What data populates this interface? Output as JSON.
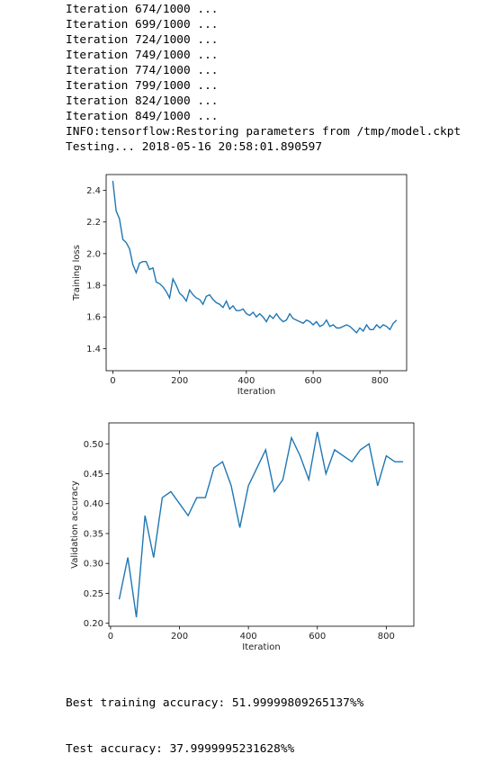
{
  "log_lines": [
    "Iteration 674/1000 ...",
    "Iteration 699/1000 ...",
    "Iteration 724/1000 ...",
    "Iteration 749/1000 ...",
    "Iteration 774/1000 ...",
    "Iteration 799/1000 ...",
    "Iteration 824/1000 ...",
    "Iteration 849/1000 ...",
    "INFO:tensorflow:Restoring parameters from /tmp/model.ckpt",
    "Testing... 2018-05-16 20:58:01.890597"
  ],
  "summary_lines": [
    "Best training accuracy: 51.99999809265137%%",
    "Test accuracy: 37.9999995231628%%"
  ],
  "colors": {
    "series": "#1f77b4",
    "axis": "#000000"
  },
  "chart_data": [
    {
      "type": "line",
      "xlabel": "Iteration",
      "ylabel": "Training loss",
      "xlim": [
        -20,
        880
      ],
      "ylim": [
        1.26,
        2.5
      ],
      "xticks": [
        0,
        200,
        400,
        600,
        800
      ],
      "yticks": [
        1.4,
        1.6,
        1.8,
        2.0,
        2.2,
        2.4
      ],
      "tick_labels_x": [
        "0",
        "200",
        "400",
        "600",
        "800"
      ],
      "tick_labels_y": [
        "1.4",
        "1.6",
        "1.8",
        "2.0",
        "2.2",
        "2.4"
      ],
      "x_start": 0,
      "x_step": 10,
      "values": [
        2.46,
        2.27,
        2.22,
        2.09,
        2.07,
        2.03,
        1.93,
        1.88,
        1.94,
        1.95,
        1.95,
        1.9,
        1.91,
        1.82,
        1.81,
        1.79,
        1.76,
        1.72,
        1.84,
        1.8,
        1.75,
        1.73,
        1.7,
        1.77,
        1.74,
        1.72,
        1.71,
        1.68,
        1.73,
        1.74,
        1.71,
        1.69,
        1.68,
        1.66,
        1.7,
        1.65,
        1.67,
        1.64,
        1.64,
        1.65,
        1.62,
        1.61,
        1.63,
        1.6,
        1.62,
        1.6,
        1.57,
        1.61,
        1.59,
        1.62,
        1.59,
        1.57,
        1.58,
        1.62,
        1.59,
        1.58,
        1.57,
        1.56,
        1.58,
        1.57,
        1.55,
        1.57,
        1.54,
        1.55,
        1.58,
        1.54,
        1.55,
        1.53,
        1.53,
        1.54,
        1.55,
        1.54,
        1.52,
        1.5,
        1.53,
        1.51,
        1.55,
        1.52,
        1.52,
        1.55,
        1.53,
        1.55,
        1.54,
        1.52,
        1.56,
        1.58
      ]
    },
    {
      "type": "line",
      "xlabel": "Iteration",
      "ylabel": "Validation accuracy",
      "xlim": [
        -5,
        880
      ],
      "ylim": [
        0.195,
        0.535
      ],
      "xticks": [
        0,
        200,
        400,
        600,
        800
      ],
      "yticks": [
        0.2,
        0.25,
        0.3,
        0.35,
        0.4,
        0.45,
        0.5
      ],
      "tick_labels_x": [
        "0",
        "200",
        "400",
        "600",
        "800"
      ],
      "tick_labels_y": [
        "0.20",
        "0.25",
        "0.30",
        "0.35",
        "0.40",
        "0.45",
        "0.50"
      ],
      "x": [
        25,
        50,
        75,
        100,
        125,
        150,
        175,
        200,
        225,
        250,
        275,
        300,
        325,
        350,
        375,
        400,
        425,
        450,
        475,
        500,
        525,
        550,
        575,
        600,
        625,
        650,
        675,
        700,
        725,
        750,
        775,
        800,
        825,
        849
      ],
      "values": [
        0.24,
        0.31,
        0.21,
        0.38,
        0.31,
        0.41,
        0.42,
        0.4,
        0.38,
        0.41,
        0.41,
        0.46,
        0.47,
        0.43,
        0.36,
        0.43,
        0.46,
        0.49,
        0.42,
        0.44,
        0.51,
        0.48,
        0.44,
        0.52,
        0.45,
        0.49,
        0.48,
        0.47,
        0.49,
        0.5,
        0.43,
        0.48,
        0.47,
        0.47
      ]
    }
  ]
}
